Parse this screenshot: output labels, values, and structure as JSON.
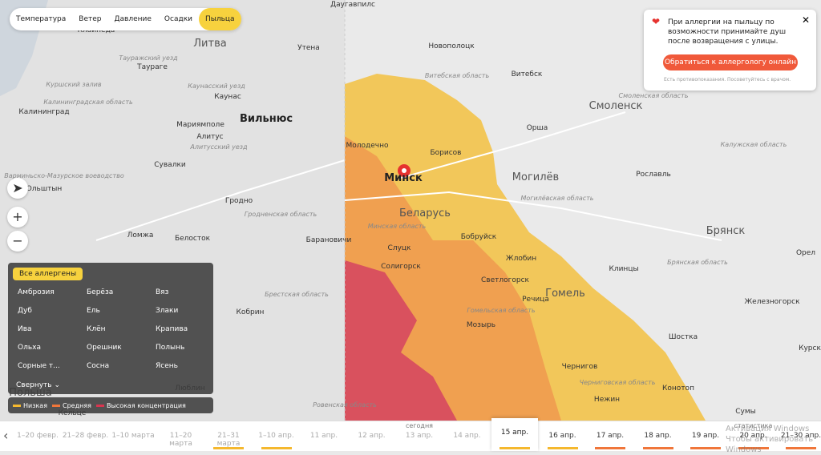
{
  "tabs": [
    "Температура",
    "Ветер",
    "Давление",
    "Осадки",
    "Пыльца"
  ],
  "popup": {
    "text": "При аллергии на пыльцу по возможности принимайте душ после возвращения с улицы.",
    "button": "Обратиться к аллергологу онлайн",
    "note": "Есть противопоказания. Посоветуйтесь с врачом."
  },
  "controls": {
    "zoom_in": "+",
    "zoom_out": "−"
  },
  "allergens": {
    "all": "Все аллергены",
    "items": [
      "Амброзия",
      "Берёза",
      "Вяз",
      "Дуб",
      "Ель",
      "Злаки",
      "Ива",
      "Клён",
      "Крапива",
      "Ольха",
      "Орешник",
      "Полынь",
      "Сорные т...",
      "Сосна",
      "Ясень"
    ],
    "collapse": "Свернуть"
  },
  "legend": [
    {
      "label": "Низкая",
      "color": "#f5b82e"
    },
    {
      "label": "Средняя",
      "color": "#f0763a"
    },
    {
      "label": "Высокая концентрация",
      "color": "#d8354f"
    }
  ],
  "timeline": [
    {
      "label": "1–20 февр."
    },
    {
      "label": "21–28 февр."
    },
    {
      "label": "1–10 марта"
    },
    {
      "label": "11–20 марта"
    },
    {
      "label": "21–31 марта",
      "color": "#f5b82e"
    },
    {
      "label": "1–10 апр.",
      "color": "#f5b82e"
    },
    {
      "label": "11 апр."
    },
    {
      "label": "12 апр."
    },
    {
      "label": "13 апр.",
      "note": "сегодня"
    },
    {
      "label": "14 апр."
    },
    {
      "label": "15 апр.",
      "color": "#f5b82e"
    },
    {
      "label": "16 апр.",
      "color": "#f5b82e"
    },
    {
      "label": "17 апр.",
      "color": "#f0763a"
    },
    {
      "label": "18 апр.",
      "color": "#f0763a"
    },
    {
      "label": "19 апр.",
      "color": "#f0763a"
    },
    {
      "label": "20 апр.",
      "note": "статистика",
      "color": "#f0763a"
    },
    {
      "label": "21–30 апр.",
      "color": "#f0763a"
    }
  ],
  "selected_day": "15 апр.",
  "map_labels": [
    "Литва",
    "Вильнюс",
    "Каунас",
    "Клайпеда",
    "Таураге",
    "Мариямполе",
    "Алитус",
    "Калининград",
    "Ольштын",
    "Сувалки",
    "Гродно",
    "Белосток",
    "Ломжа",
    "Барановичи",
    "Молодечно",
    "Минск",
    "Беларусь",
    "Борисов",
    "Слуцк",
    "Солигорск",
    "Бобруйск",
    "Жлобин",
    "Светлогорск",
    "Речица",
    "Гомель",
    "Мозырь",
    "Могилёв",
    "Орша",
    "Витебск",
    "Новополоцк",
    "Смоленск",
    "Рославль",
    "Брянск",
    "Клинцы",
    "Чернигов",
    "Нежин",
    "Конотоп",
    "Шостка",
    "Сумы",
    "Орел",
    "Курск",
    "Железногорск",
    "Кобрин",
    "Люблин",
    "Кельце",
    "Польша",
    "Утена",
    "Даугавпилс"
  ],
  "region_labels": [
    "Витебская область",
    "Могилёвская область",
    "Минская область",
    "Гомельская область",
    "Брестская область",
    "Гродненская область",
    "Смоленская область",
    "Калужская область",
    "Брянская область",
    "Черниговская область",
    "Варминьско-Мазурское воеводство",
    "Калининградская область",
    "Каунасский уезд",
    "Алитусский уезд",
    "Тауражский уезд",
    "Куршский залив",
    "Ровенская область"
  ],
  "watermark": [
    "Активация Windows",
    "Чтобы активировать Windows"
  ]
}
